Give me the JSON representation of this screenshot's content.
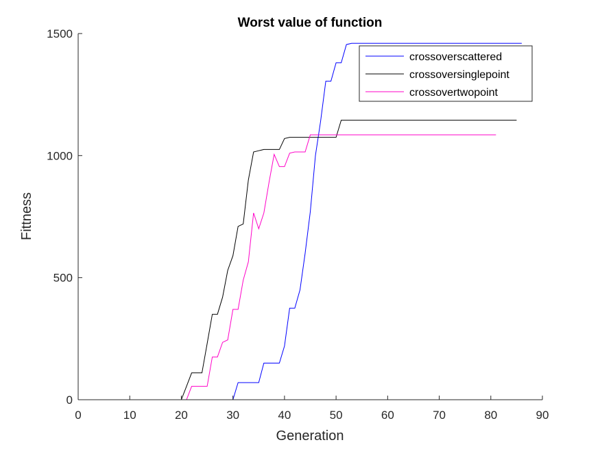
{
  "chart_data": {
    "type": "line",
    "title": "Worst value of function",
    "xlabel": "Generation",
    "ylabel": "Fittness",
    "xlim": [
      0,
      90
    ],
    "ylim": [
      0,
      1500
    ],
    "xticks": [
      0,
      10,
      20,
      30,
      40,
      50,
      60,
      70,
      80,
      90
    ],
    "yticks": [
      0,
      500,
      1000,
      1500
    ],
    "grid": false,
    "legend_position": "top-right",
    "series": [
      {
        "name": "crossoverscattered",
        "color": "#0000ff",
        "x": [
          0,
          1,
          2,
          3,
          4,
          5,
          6,
          7,
          8,
          9,
          10,
          11,
          12,
          13,
          14,
          15,
          16,
          17,
          18,
          19,
          20,
          21,
          22,
          23,
          24,
          25,
          26,
          27,
          28,
          29,
          30,
          31,
          32,
          33,
          34,
          35,
          36,
          37,
          38,
          39,
          40,
          41,
          42,
          43,
          44,
          45,
          46,
          47,
          48,
          49,
          50,
          51,
          52,
          53,
          54,
          55,
          56,
          57,
          58,
          59,
          60,
          61,
          62,
          63,
          64,
          65,
          66,
          67,
          68,
          69,
          70,
          71,
          72,
          73,
          74,
          75,
          76,
          77,
          78,
          79,
          80,
          81,
          82,
          83,
          84,
          85,
          86
        ],
        "y": [
          0,
          0,
          0,
          0,
          0,
          0,
          0,
          0,
          0,
          0,
          0,
          0,
          0,
          0,
          0,
          0,
          0,
          0,
          0,
          0,
          0,
          0,
          0,
          0,
          0,
          0,
          0,
          0,
          0,
          0,
          0,
          70,
          70,
          70,
          70,
          70,
          150,
          150,
          150,
          150,
          220,
          375,
          375,
          450,
          600,
          770,
          1000,
          1140,
          1305,
          1305,
          1380,
          1380,
          1455,
          1460,
          1460,
          1460,
          1460,
          1460,
          1460,
          1460,
          1460,
          1460,
          1460,
          1460,
          1460,
          1460,
          1460,
          1460,
          1460,
          1460,
          1460,
          1460,
          1460,
          1460,
          1460,
          1460,
          1460,
          1460,
          1460,
          1460,
          1460,
          1460,
          1460,
          1460,
          1460,
          1460,
          1460
        ]
      },
      {
        "name": "crossoversinglepoint",
        "color": "#000000",
        "x": [
          0,
          1,
          2,
          3,
          4,
          5,
          6,
          7,
          8,
          9,
          10,
          11,
          12,
          13,
          14,
          15,
          16,
          17,
          18,
          19,
          20,
          21,
          22,
          23,
          24,
          25,
          26,
          27,
          28,
          29,
          30,
          31,
          32,
          33,
          34,
          35,
          36,
          37,
          38,
          39,
          40,
          41,
          42,
          43,
          44,
          45,
          46,
          47,
          48,
          49,
          50,
          51,
          52,
          53,
          54,
          55,
          56,
          57,
          58,
          59,
          60,
          61,
          62,
          63,
          64,
          65,
          66,
          67,
          68,
          69,
          70,
          71,
          72,
          73,
          74,
          75,
          76,
          77,
          78,
          79,
          80,
          81,
          82,
          83,
          84,
          85
        ],
        "y": [
          0,
          0,
          0,
          0,
          0,
          0,
          0,
          0,
          0,
          0,
          0,
          0,
          0,
          0,
          0,
          0,
          0,
          0,
          0,
          0,
          0,
          55,
          110,
          110,
          110,
          230,
          350,
          350,
          420,
          530,
          590,
          710,
          720,
          900,
          1015,
          1020,
          1025,
          1025,
          1025,
          1025,
          1070,
          1075,
          1075,
          1075,
          1075,
          1075,
          1075,
          1075,
          1075,
          1075,
          1075,
          1145,
          1145,
          1145,
          1145,
          1145,
          1145,
          1145,
          1145,
          1145,
          1145,
          1145,
          1145,
          1145,
          1145,
          1145,
          1145,
          1145,
          1145,
          1145,
          1145,
          1145,
          1145,
          1145,
          1145,
          1145,
          1145,
          1145,
          1145,
          1145,
          1145,
          1145,
          1145,
          1145,
          1145,
          1145
        ]
      },
      {
        "name": "crossovertwopoint",
        "color": "#ff00c8",
        "x": [
          0,
          1,
          2,
          3,
          4,
          5,
          6,
          7,
          8,
          9,
          10,
          11,
          12,
          13,
          14,
          15,
          16,
          17,
          18,
          19,
          20,
          21,
          22,
          23,
          24,
          25,
          26,
          27,
          28,
          29,
          30,
          31,
          32,
          33,
          34,
          35,
          36,
          37,
          38,
          39,
          40,
          41,
          42,
          43,
          44,
          45,
          46,
          47,
          48,
          49,
          50,
          51,
          52,
          53,
          54,
          55,
          56,
          57,
          58,
          59,
          60,
          61,
          62,
          63,
          64,
          65,
          66,
          67,
          68,
          69,
          70,
          71,
          72,
          73,
          74,
          75,
          76,
          77,
          78,
          79,
          80,
          81
        ],
        "y": [
          0,
          0,
          0,
          0,
          0,
          0,
          0,
          0,
          0,
          0,
          0,
          0,
          0,
          0,
          0,
          0,
          0,
          0,
          0,
          0,
          0,
          0,
          55,
          55,
          55,
          55,
          175,
          175,
          235,
          245,
          370,
          370,
          490,
          565,
          765,
          700,
          765,
          890,
          1005,
          955,
          955,
          1010,
          1015,
          1015,
          1015,
          1085,
          1085,
          1085,
          1085,
          1085,
          1085,
          1085,
          1085,
          1085,
          1085,
          1085,
          1085,
          1085,
          1085,
          1085,
          1085,
          1085,
          1085,
          1085,
          1085,
          1085,
          1085,
          1085,
          1085,
          1085,
          1085,
          1085,
          1085,
          1085,
          1085,
          1085,
          1085,
          1085,
          1085,
          1085,
          1085,
          1085
        ]
      }
    ]
  }
}
